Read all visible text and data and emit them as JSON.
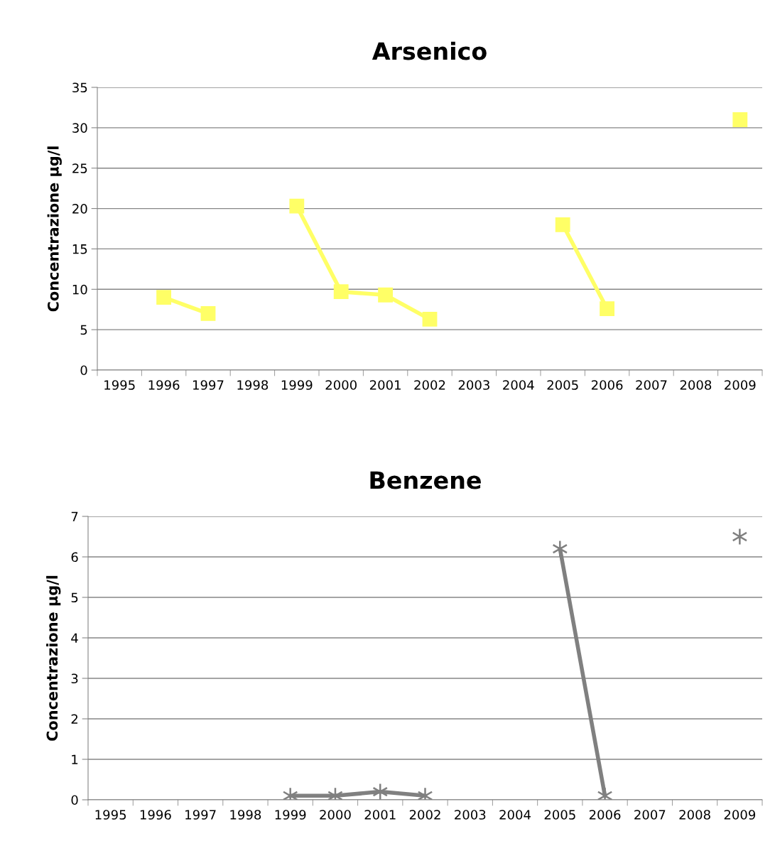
{
  "chart_data": [
    {
      "type": "line",
      "title": "Arsenico",
      "ylabel": "Concentrazione µg/l",
      "categories": [
        "1995",
        "1996",
        "1997",
        "1998",
        "1999",
        "2000",
        "2001",
        "2002",
        "2003",
        "2004",
        "2005",
        "2006",
        "2007",
        "2008",
        "2009"
      ],
      "series": [
        {
          "color": "#ffff66",
          "values": [
            null,
            9,
            7,
            null,
            20.3,
            9.7,
            9.3,
            6.3,
            null,
            null,
            18,
            7.6,
            null,
            null,
            31
          ]
        }
      ],
      "marker": "square",
      "ylim": [
        0,
        35
      ],
      "yticks": [
        0,
        5,
        10,
        15,
        20,
        25,
        30,
        35
      ],
      "grid": "y",
      "legend": false
    },
    {
      "type": "line",
      "title": "Benzene",
      "ylabel": "Concentrazione µg/l",
      "categories": [
        "1995",
        "1996",
        "1997",
        "1998",
        "1999",
        "2000",
        "2001",
        "2002",
        "2003",
        "2004",
        "2005",
        "2006",
        "2007",
        "2008",
        "2009"
      ],
      "series": [
        {
          "color": "#808080",
          "values": [
            null,
            null,
            null,
            null,
            0.1,
            0.1,
            0.2,
            0.1,
            null,
            null,
            6.2,
            0.1,
            null,
            null,
            6.5
          ]
        }
      ],
      "marker": "cross",
      "ylim": [
        0,
        7
      ],
      "yticks": [
        0,
        1,
        2,
        3,
        4,
        5,
        6,
        7
      ],
      "grid": "y",
      "legend": false
    }
  ]
}
